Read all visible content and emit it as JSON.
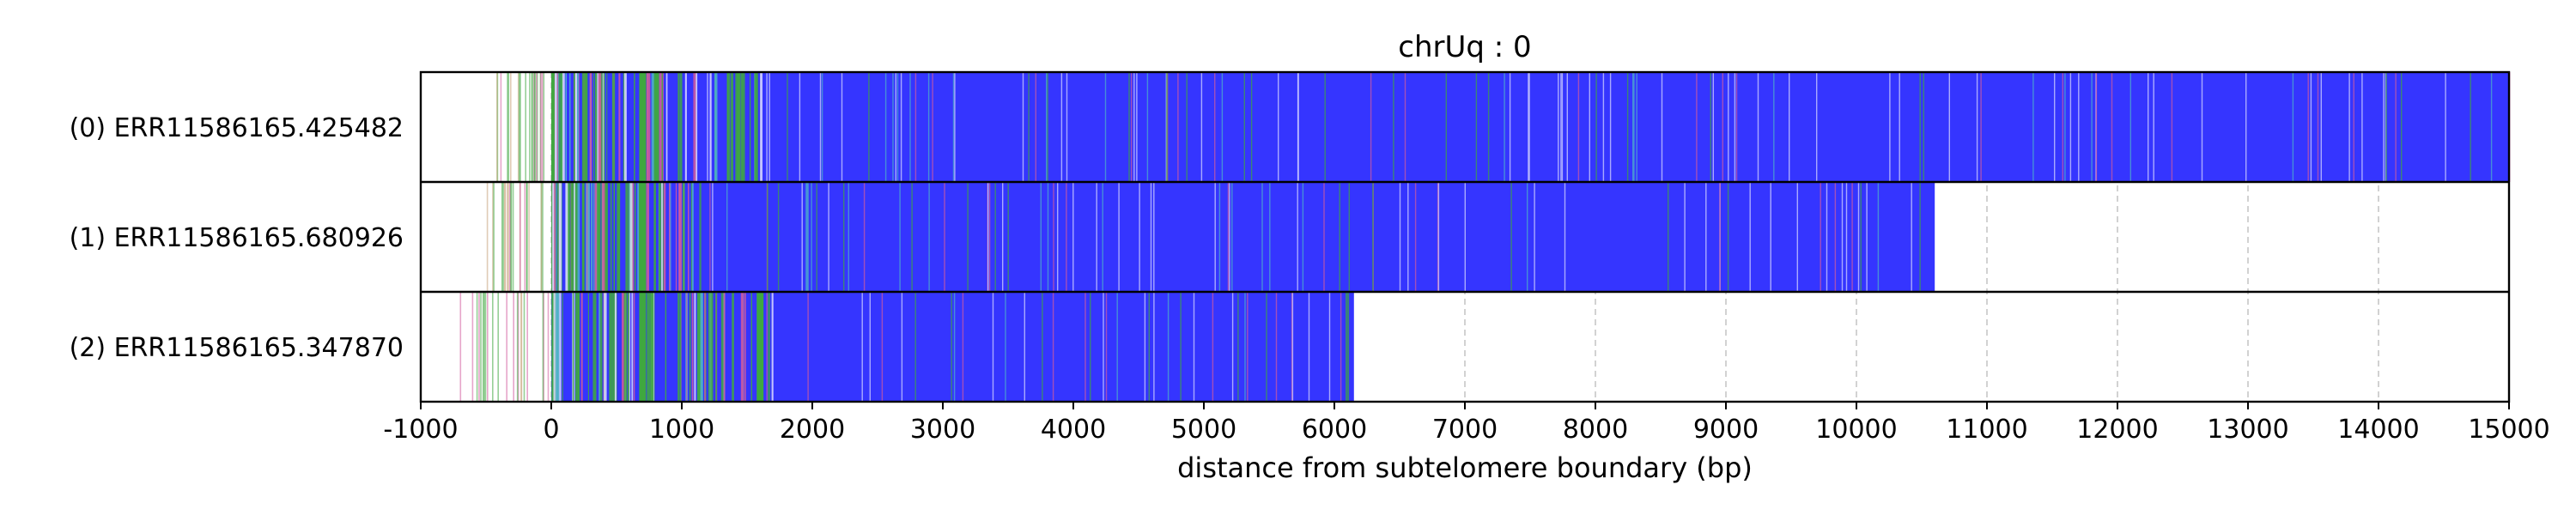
{
  "chart_data": {
    "type": "track",
    "title": "chrUq : 0",
    "xlabel": "distance from subtelomere boundary (bp)",
    "ylabel": "",
    "xlim": [
      -1000,
      15000
    ],
    "xticks": [
      -1000,
      0,
      1000,
      2000,
      3000,
      4000,
      5000,
      6000,
      7000,
      8000,
      9000,
      10000,
      11000,
      12000,
      13000,
      14000,
      15000
    ],
    "grid": {
      "vertical": true,
      "style": "dashed"
    },
    "colors": {
      "fill": "#3535ff",
      "green": "#3fa83f",
      "pink": "#d25b9e",
      "cyan": "#4fb3c8",
      "light": "#dcdcff",
      "frame": "#000000",
      "grid": "#b0b0b0"
    },
    "reads": [
      {
        "label": "(0) ERR11586165.425482",
        "start": -450,
        "fill_start": 0,
        "end": 15000,
        "thick_green_at": [
          700
        ],
        "green_cluster_end": 1600
      },
      {
        "label": "(1) ERR11586165.680926",
        "start": -500,
        "fill_start": 0,
        "end": 10600,
        "thick_green_at": [
          700
        ],
        "green_cluster_end": 1100
      },
      {
        "label": "(2) ERR11586165.347870",
        "start": -780,
        "fill_start": 0,
        "end": 6150,
        "thick_green_at": [
          700,
          1600
        ],
        "green_cluster_end": 1700
      }
    ]
  }
}
